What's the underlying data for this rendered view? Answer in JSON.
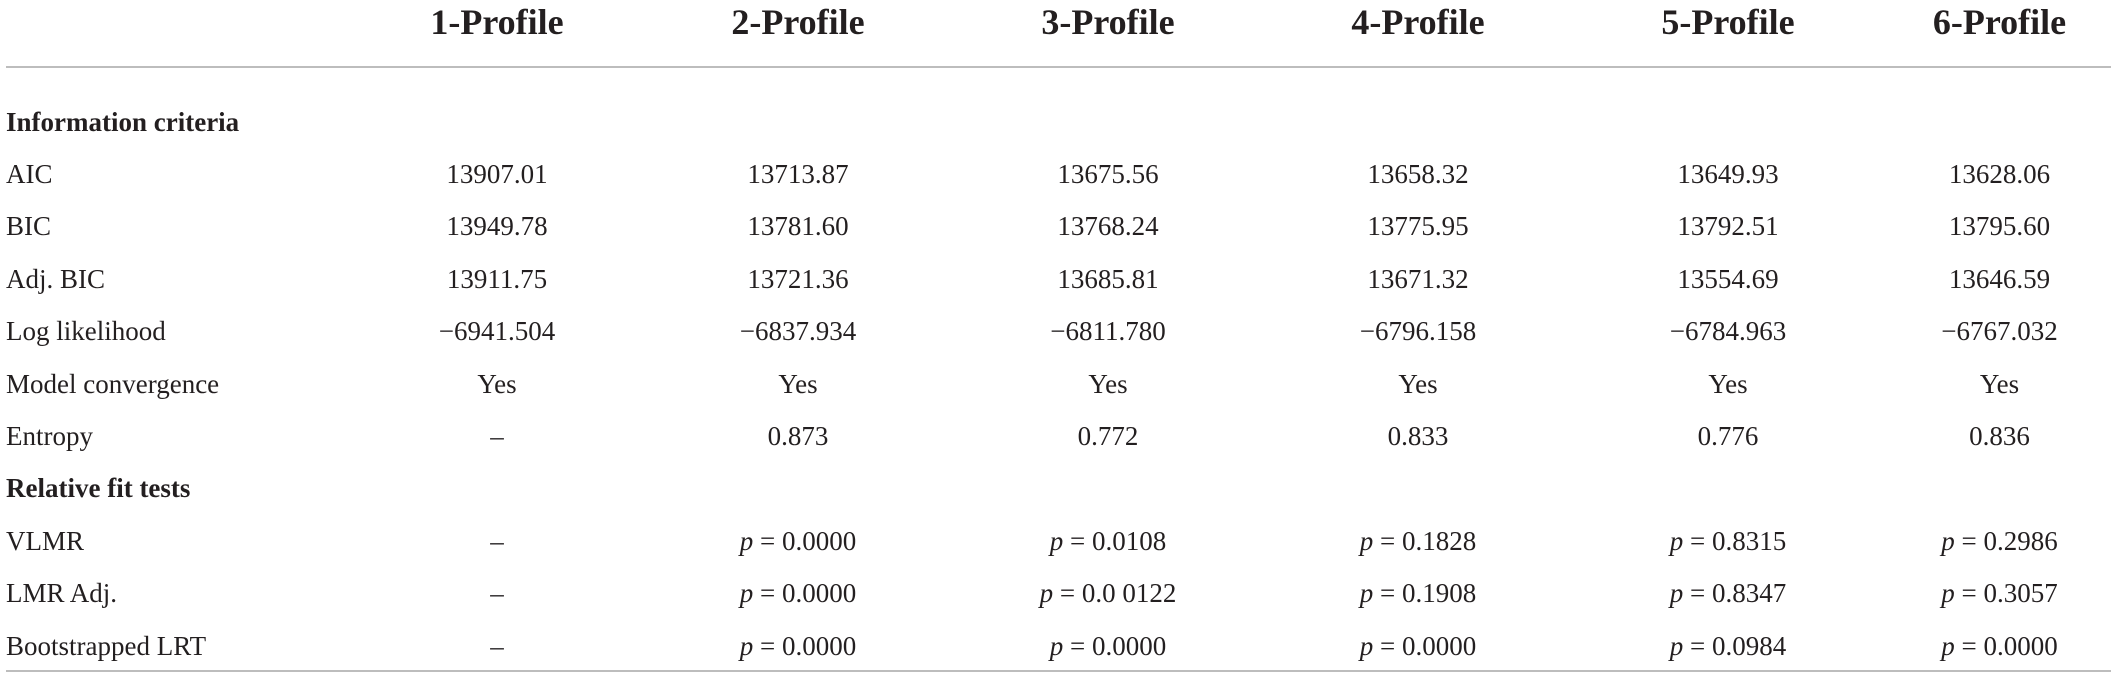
{
  "columns": [
    "",
    "1-Profile",
    "2-Profile",
    "3-Profile",
    "4-Profile",
    "5-Profile",
    "6-Profile"
  ],
  "sections": [
    {
      "title": "Information criteria",
      "rows": [
        {
          "label": "AIC",
          "values": [
            "13907.01",
            "13713.87",
            "13675.56",
            "13658.32",
            "13649.93",
            "13628.06"
          ]
        },
        {
          "label": "BIC",
          "values": [
            "13949.78",
            "13781.60",
            "13768.24",
            "13775.95",
            "13792.51",
            "13795.60"
          ]
        },
        {
          "label": "Adj. BIC",
          "values": [
            "13911.75",
            "13721.36",
            "13685.81",
            "13671.32",
            "13554.69",
            "13646.59"
          ]
        },
        {
          "label": "Log likelihood",
          "values": [
            "−6941.504",
            "−6837.934",
            "−6811.780",
            "−6796.158",
            "−6784.963",
            "−6767.032"
          ]
        },
        {
          "label": "Model convergence",
          "values": [
            "Yes",
            "Yes",
            "Yes",
            "Yes",
            "Yes",
            "Yes"
          ]
        },
        {
          "label": "Entropy",
          "values": [
            "–",
            "0.873",
            "0.772",
            "0.833",
            "0.776",
            "0.836"
          ]
        }
      ]
    },
    {
      "title": "Relative fit tests",
      "rows": [
        {
          "label": "VLMR",
          "values": [
            "–",
            "= 0.0000",
            "= 0.0108",
            "= 0.1828",
            "= 0.8315",
            "= 0.2986"
          ]
        },
        {
          "label": "LMR Adj.",
          "values": [
            "–",
            "= 0.0000",
            "= 0.0 0122",
            "= 0.1908",
            "= 0.8347",
            "= 0.3057"
          ]
        },
        {
          "label": "Bootstrapped LRT",
          "values": [
            "–",
            "= 0.0000",
            "= 0.0000",
            "= 0.0000",
            "= 0.0984",
            "= 0.0000"
          ]
        }
      ]
    }
  ],
  "p_symbol": "p"
}
